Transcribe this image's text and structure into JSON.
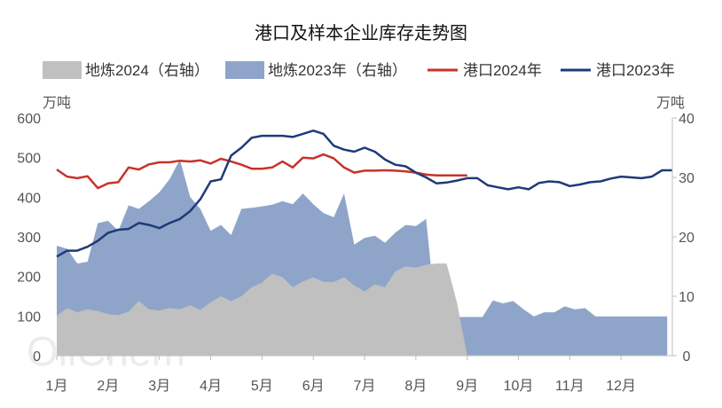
{
  "chart_data": {
    "type": "line",
    "title": "港口及样本企业库存走势图",
    "left_unit": "万吨",
    "right_unit": "万吨",
    "left_ylim": [
      0,
      600
    ],
    "left_ticks": [
      0,
      100,
      200,
      300,
      400,
      500,
      600
    ],
    "right_ylim": [
      0,
      40
    ],
    "right_ticks": [
      0,
      10,
      20,
      30,
      40
    ],
    "xlim": [
      1,
      13
    ],
    "x_tick_labels": [
      "1月",
      "2月",
      "3月",
      "4月",
      "5月",
      "6月",
      "7月",
      "8月",
      "9月",
      "10月",
      "11月",
      "12月"
    ],
    "watermark": "OilChem",
    "series": [
      {
        "name": "地炼2024（右轴）",
        "kind": "area",
        "axis": "right",
        "color": "#c0c0c0",
        "x": [
          1.0,
          1.2,
          1.4,
          1.6,
          1.8,
          2.0,
          2.2,
          2.4,
          2.6,
          2.8,
          3.0,
          3.2,
          3.4,
          3.6,
          3.8,
          4.0,
          4.2,
          4.4,
          4.6,
          4.8,
          5.0,
          5.2,
          5.4,
          5.6,
          5.8,
          6.0,
          6.2,
          6.4,
          6.6,
          6.8,
          7.0,
          7.2,
          7.4,
          7.6,
          7.8,
          8.0,
          8.2,
          8.4,
          8.6,
          8.8,
          9.0,
          9.1,
          9.3
        ],
        "y": [
          6.7,
          8.0,
          7.3,
          7.8,
          7.5,
          7.0,
          6.8,
          7.4,
          9.2,
          7.8,
          7.6,
          8.0,
          7.8,
          8.5,
          7.7,
          9.0,
          10.0,
          9.2,
          10.0,
          11.5,
          12.3,
          13.8,
          13.2,
          11.5,
          12.5,
          13.2,
          12.4,
          12.4,
          13.2,
          11.8,
          10.8,
          12.0,
          11.5,
          14.2,
          15.0,
          14.8,
          15.3,
          15.5,
          15.5,
          9.0,
          0,
          0,
          0
        ]
      },
      {
        "name": "地炼2023年（右轴）",
        "kind": "area",
        "axis": "right",
        "color": "#8ea5c9",
        "x": [
          1.0,
          1.2,
          1.4,
          1.6,
          1.8,
          2.0,
          2.2,
          2.4,
          2.6,
          2.8,
          3.0,
          3.2,
          3.4,
          3.6,
          3.8,
          4.0,
          4.2,
          4.4,
          4.6,
          4.8,
          5.0,
          5.2,
          5.4,
          5.6,
          5.8,
          6.0,
          6.2,
          6.4,
          6.6,
          6.8,
          7.0,
          7.2,
          7.4,
          7.6,
          7.8,
          8.0,
          8.2,
          8.4,
          8.6,
          8.8,
          9.0,
          9.3,
          9.5,
          9.7,
          9.9,
          10.1,
          10.3,
          10.5,
          10.7,
          10.9,
          11.1,
          11.3,
          11.5,
          11.7,
          11.9,
          12.1,
          12.3,
          12.5,
          12.7,
          12.9
        ],
        "y": [
          18.5,
          18.0,
          15.5,
          15.8,
          22.3,
          22.7,
          21.0,
          25.3,
          24.7,
          26.0,
          27.5,
          29.7,
          33.0,
          26.7,
          24.7,
          21.0,
          22.0,
          20.3,
          24.7,
          24.9,
          25.1,
          25.4,
          26.0,
          25.5,
          27.3,
          25.5,
          24.0,
          23.3,
          27.3,
          18.7,
          19.8,
          20.2,
          19.0,
          20.7,
          22.0,
          21.8,
          23.0,
          6.0,
          6.6,
          6.5,
          6.5,
          6.5,
          9.3,
          8.8,
          9.2,
          7.8,
          6.6,
          7.3,
          7.3,
          8.3,
          7.8,
          8.0,
          6.6,
          6.6,
          6.6,
          6.6,
          6.6,
          6.6,
          6.6,
          6.6
        ]
      },
      {
        "name": "港口2024年",
        "kind": "line",
        "axis": "left",
        "color": "#c8322a",
        "x": [
          1.0,
          1.2,
          1.4,
          1.6,
          1.8,
          2.0,
          2.2,
          2.4,
          2.6,
          2.8,
          3.0,
          3.2,
          3.4,
          3.6,
          3.8,
          4.0,
          4.2,
          4.4,
          4.6,
          4.8,
          5.0,
          5.2,
          5.4,
          5.6,
          5.8,
          6.0,
          6.2,
          6.4,
          6.6,
          6.8,
          7.0,
          7.2,
          7.4,
          7.6,
          7.8,
          8.0,
          8.2,
          8.4,
          8.6,
          8.8,
          9.0
        ],
        "y": [
          470,
          452,
          448,
          453,
          423,
          435,
          438,
          475,
          470,
          483,
          488,
          488,
          492,
          490,
          493,
          485,
          497,
          490,
          482,
          472,
          472,
          475,
          490,
          475,
          500,
          498,
          508,
          498,
          475,
          462,
          467,
          467,
          468,
          467,
          465,
          462,
          457,
          455,
          455,
          455,
          455
        ]
      },
      {
        "name": "港口2023年",
        "kind": "line",
        "axis": "left",
        "color": "#1f3a78",
        "x": [
          1.0,
          1.2,
          1.4,
          1.6,
          1.8,
          2.0,
          2.2,
          2.4,
          2.6,
          2.8,
          3.0,
          3.2,
          3.4,
          3.6,
          3.8,
          4.0,
          4.2,
          4.4,
          4.6,
          4.8,
          5.0,
          5.2,
          5.4,
          5.6,
          5.8,
          6.0,
          6.2,
          6.4,
          6.6,
          6.8,
          7.0,
          7.2,
          7.4,
          7.6,
          7.8,
          8.0,
          8.2,
          8.4,
          8.6,
          8.8,
          9.0,
          9.2,
          9.4,
          9.6,
          9.8,
          10.0,
          10.2,
          10.4,
          10.6,
          10.8,
          11.0,
          11.2,
          11.4,
          11.6,
          11.8,
          12.0,
          12.2,
          12.4,
          12.6,
          12.8,
          13.0
        ],
        "y": [
          250,
          265,
          265,
          275,
          290,
          310,
          318,
          320,
          335,
          330,
          322,
          335,
          345,
          365,
          395,
          440,
          445,
          505,
          525,
          550,
          555,
          555,
          555,
          552,
          560,
          568,
          560,
          530,
          520,
          515,
          525,
          515,
          495,
          482,
          478,
          462,
          450,
          435,
          437,
          442,
          448,
          448,
          430,
          425,
          420,
          425,
          420,
          436,
          440,
          438,
          428,
          432,
          438,
          440,
          447,
          452,
          450,
          448,
          452,
          468,
          468
        ]
      }
    ]
  }
}
